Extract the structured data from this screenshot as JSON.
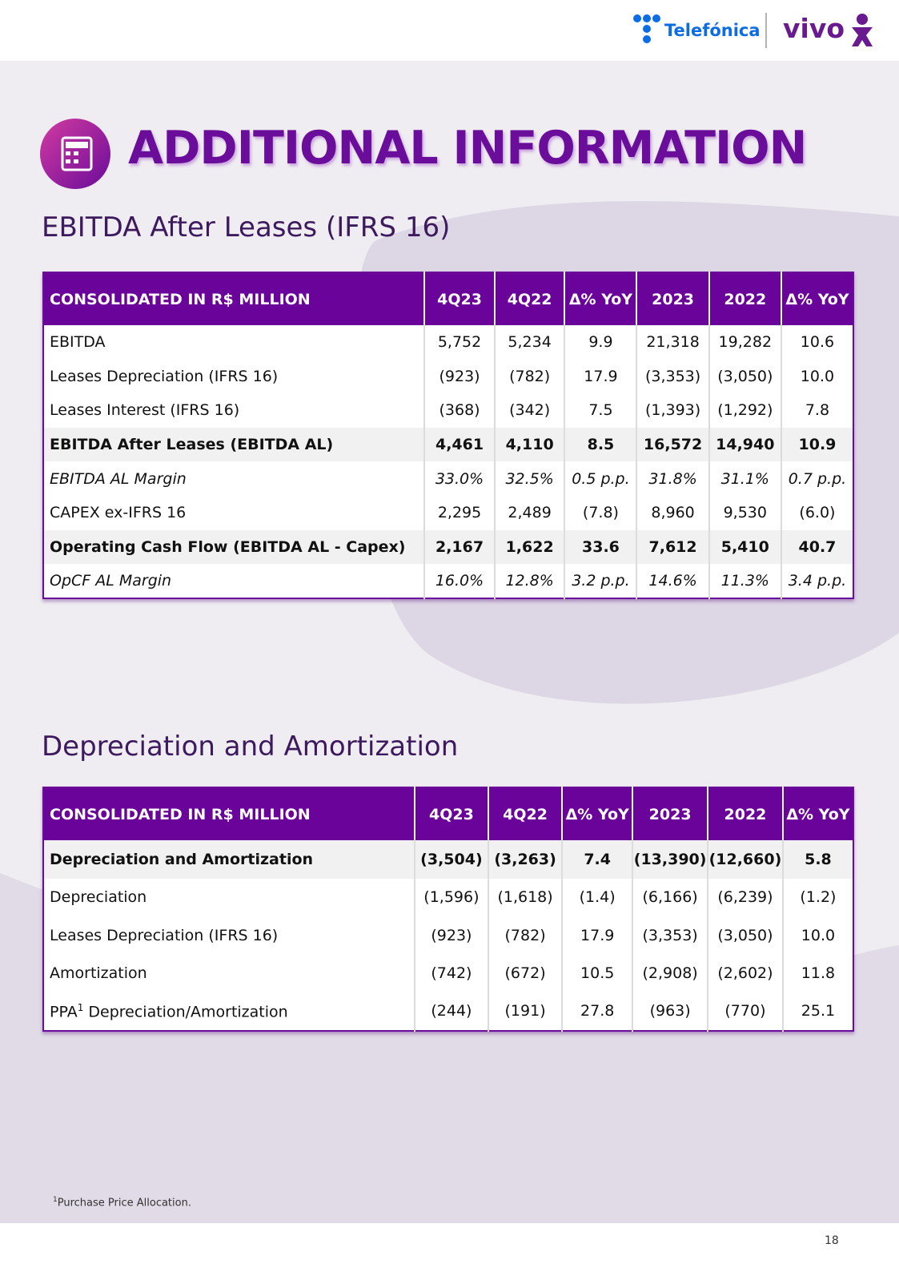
{
  "header": {
    "brand_1": "Telefónica",
    "brand_2": "vivo"
  },
  "title": "ADDITIONAL INFORMATION",
  "sections": [
    {
      "heading": "EBITDA After Leases (IFRS 16)",
      "table": {
        "columns": [
          "CONSOLIDATED IN R$ MILLION",
          "4Q23",
          "4Q22",
          "Δ% YoY",
          "2023",
          "2022",
          "Δ% YoY"
        ],
        "rows": [
          {
            "label": "EBITDA",
            "cells": [
              "5,752",
              "5,234",
              "9.9",
              "21,318",
              "19,282",
              "10.6"
            ]
          },
          {
            "label": "Leases Depreciation (IFRS 16)",
            "cells": [
              "(923)",
              "(782)",
              "17.9",
              "(3,353)",
              "(3,050)",
              "10.0"
            ]
          },
          {
            "label": "Leases Interest (IFRS 16)",
            "cells": [
              "(368)",
              "(342)",
              "7.5",
              "(1,393)",
              "(1,292)",
              "7.8"
            ]
          },
          {
            "label": "EBITDA After Leases (EBITDA AL)",
            "cells": [
              "4,461",
              "4,110",
              "8.5",
              "16,572",
              "14,940",
              "10.9"
            ],
            "bold": true
          },
          {
            "label": "EBITDA AL Margin",
            "cells": [
              "33.0%",
              "32.5%",
              "0.5 p.p.",
              "31.8%",
              "31.1%",
              "0.7 p.p."
            ],
            "italic": true
          },
          {
            "label": "CAPEX ex-IFRS 16",
            "cells": [
              "2,295",
              "2,489",
              "(7.8)",
              "8,960",
              "9,530",
              "(6.0)"
            ]
          },
          {
            "label": "Operating Cash Flow (EBITDA AL - Capex)",
            "cells": [
              "2,167",
              "1,622",
              "33.6",
              "7,612",
              "5,410",
              "40.7"
            ],
            "bold": true
          },
          {
            "label": "OpCF AL Margin",
            "cells": [
              "16.0%",
              "12.8%",
              "3.2 p.p.",
              "14.6%",
              "11.3%",
              "3.4 p.p."
            ],
            "italic": true
          }
        ]
      }
    },
    {
      "heading": "Depreciation and Amortization",
      "table": {
        "columns": [
          "CONSOLIDATED IN R$ MILLION",
          "4Q23",
          "4Q22",
          "Δ% YoY",
          "2023",
          "2022",
          "Δ% YoY"
        ],
        "rows": [
          {
            "label": "Depreciation and Amortization",
            "cells": [
              "(3,504)",
              "(3,263)",
              "7.4",
              "(13,390)",
              "(12,660)",
              "5.8"
            ],
            "bold": true
          },
          {
            "label": "Depreciation",
            "cells": [
              "(1,596)",
              "(1,618)",
              "(1.4)",
              "(6,166)",
              "(6,239)",
              "(1.2)"
            ]
          },
          {
            "label": "Leases Depreciation (IFRS 16)",
            "cells": [
              "(923)",
              "(782)",
              "17.9",
              "(3,353)",
              "(3,050)",
              "10.0"
            ]
          },
          {
            "label": "Amortization",
            "cells": [
              "(742)",
              "(672)",
              "10.5",
              "(2,908)",
              "(2,602)",
              "11.8"
            ]
          },
          {
            "label": "PPA",
            "label_sup": "1",
            "label_rest": " Depreciation/Amortization",
            "cells": [
              "(244)",
              "(191)",
              "27.8",
              "(963)",
              "(770)",
              "25.1"
            ]
          }
        ]
      }
    }
  ],
  "footnote": {
    "mark": "1",
    "text": "Purchase Price Allocation."
  },
  "page_number": "18"
}
